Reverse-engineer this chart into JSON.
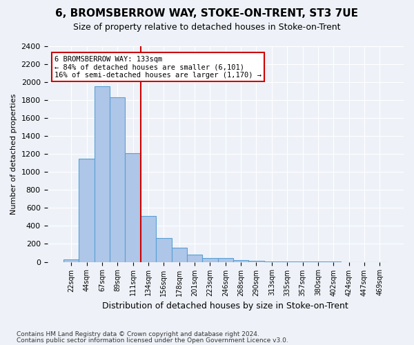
{
  "title": "6, BROMSBERROW WAY, STOKE-ON-TRENT, ST3 7UE",
  "subtitle": "Size of property relative to detached houses in Stoke-on-Trent",
  "xlabel": "Distribution of detached houses by size in Stoke-on-Trent",
  "ylabel": "Number of detached properties",
  "bin_labels": [
    "22sqm",
    "44sqm",
    "67sqm",
    "89sqm",
    "111sqm",
    "134sqm",
    "156sqm",
    "178sqm",
    "201sqm",
    "223sqm",
    "246sqm",
    "268sqm",
    "290sqm",
    "313sqm",
    "335sqm",
    "357sqm",
    "380sqm",
    "402sqm",
    "424sqm",
    "447sqm",
    "469sqm"
  ],
  "bar_values": [
    30,
    1150,
    1950,
    1830,
    1210,
    510,
    265,
    155,
    80,
    45,
    40,
    20,
    10,
    5,
    3,
    2,
    1,
    1,
    0,
    0,
    0
  ],
  "bar_color": "#aec6e8",
  "bar_edgecolor": "#5a9fd4",
  "vline_x": 4.5,
  "vline_color": "#cc0000",
  "annotation_text": "6 BROMSBERROW WAY: 133sqm\n← 84% of detached houses are smaller (6,101)\n16% of semi-detached houses are larger (1,170) →",
  "annotation_box_color": "#cc0000",
  "ylim": [
    0,
    2400
  ],
  "yticks": [
    0,
    200,
    400,
    600,
    800,
    1000,
    1200,
    1400,
    1600,
    1800,
    2000,
    2200,
    2400
  ],
  "footer_line1": "Contains HM Land Registry data © Crown copyright and database right 2024.",
  "footer_line2": "Contains public sector information licensed under the Open Government Licence v3.0.",
  "bg_color": "#eef2f8",
  "plot_bg_color": "#eef2f8"
}
